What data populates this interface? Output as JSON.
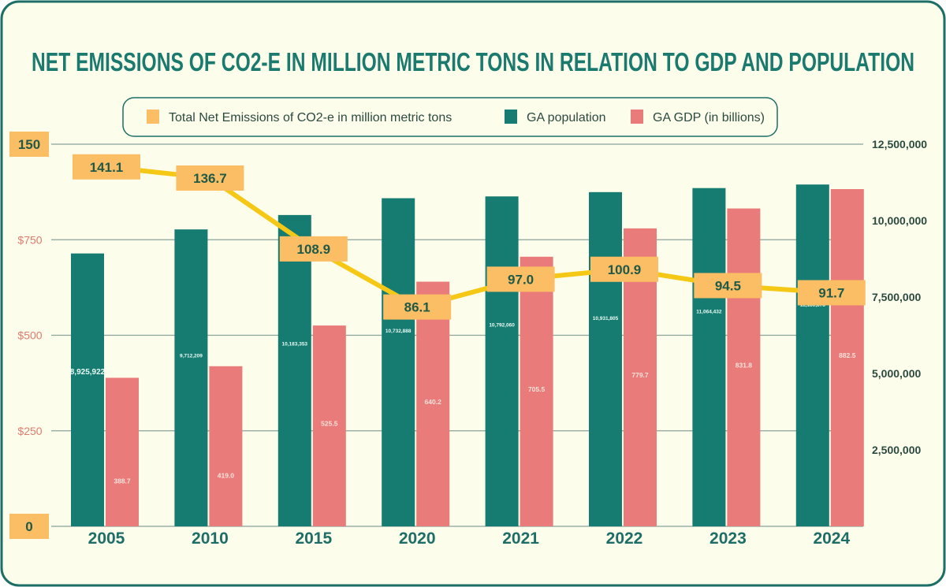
{
  "chart_data": {
    "type": "bar",
    "title": "NET EMISSIONS OF CO2-E IN MILLION METRIC TONS IN RELATION TO GDP AND POPULATION",
    "categories": [
      "2005",
      "2010",
      "2015",
      "2020",
      "2021",
      "2022",
      "2023",
      "2024"
    ],
    "series": [
      {
        "name": "Total Net Emissions of CO2-e in million metric tons",
        "type": "line",
        "axis": "left-emissions",
        "values": [
          141.1,
          136.7,
          108.9,
          86.1,
          97.0,
          100.9,
          94.5,
          91.7
        ],
        "labels": [
          "141.1",
          "136.7",
          "108.9",
          "86.1",
          "97.0",
          "100.9",
          "94.5",
          "91.7"
        ],
        "color": "#f5c816"
      },
      {
        "name": "GA population",
        "type": "bar",
        "axis": "right",
        "values": [
          8925922,
          9712209,
          10183353,
          10732888,
          10792060,
          10931805,
          11064432,
          11180878
        ],
        "labels": [
          "8,925,922",
          "9,712,209",
          "10,183,353",
          "10,732,888",
          "10,792,060",
          "10,931,805",
          "11,064,432",
          "11,180,878"
        ],
        "color": "#167b70"
      },
      {
        "name": "GA GDP (in billions)",
        "type": "bar",
        "axis": "left-gdp",
        "values": [
          388.7,
          419.0,
          525.5,
          640.2,
          705.5,
          779.7,
          831.8,
          882.5
        ],
        "labels": [
          "388.7",
          "419.0",
          "525.5",
          "640.2",
          "705.5",
          "779.7",
          "831.8",
          "882.5"
        ],
        "color": "#e97b7a"
      }
    ],
    "left_emissions_axis": {
      "ylim": [
        0,
        150
      ],
      "ticks": [
        "150",
        "0"
      ]
    },
    "left_gdp_axis": {
      "ylim": [
        0,
        1000
      ],
      "ticks": [
        "$750",
        "$500",
        "$250"
      ]
    },
    "right_axis": {
      "ylim": [
        0,
        12500000
      ],
      "ticks": [
        "12,500,000",
        "10,000,000",
        "7,500,000",
        "5,000,000",
        "2,500,000"
      ]
    },
    "grid": true,
    "legend_position": "top"
  },
  "colors": {
    "background": "#fdfdeb",
    "border": "#1d6e66",
    "title": "#1a7a6e",
    "label_box": "#fbbe64",
    "label_text": "#1f5a48",
    "gdp_tick": "#e07b70",
    "axis_text": "#2c4a40"
  }
}
